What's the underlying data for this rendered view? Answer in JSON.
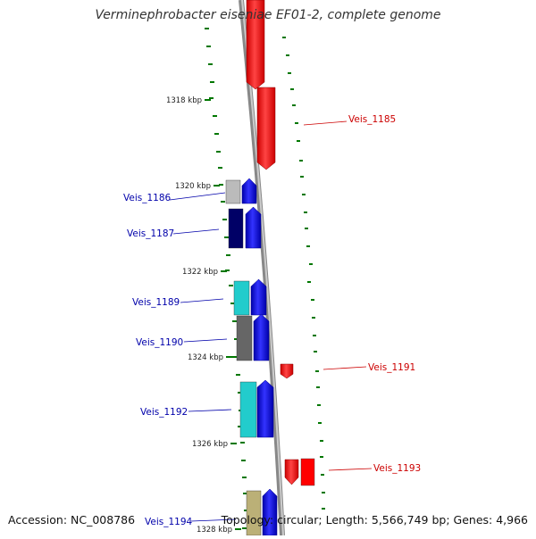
{
  "header": {
    "title": "Verminephrobacter eiseniae EF01-2, complete genome"
  },
  "footer": {
    "accession": "Accession: NC_008786",
    "summary": "Topology: circular; Length: 5,566,749 bp; Genes: 4,966"
  },
  "scale": {
    "ticks": [
      {
        "label": "1318 kbp"
      },
      {
        "label": "1320 kbp"
      },
      {
        "label": "1322 kbp"
      },
      {
        "label": "1324 kbp"
      },
      {
        "label": "1326 kbp"
      },
      {
        "label": "1328 kbp"
      }
    ]
  },
  "genes": [
    {
      "label": "Veis_1185",
      "strand": "reverse",
      "color": "#ff0000"
    },
    {
      "label": "Veis_1186",
      "strand": "forward",
      "color": "#bbbbbb"
    },
    {
      "label": "Veis_1187",
      "strand": "forward",
      "color": "#000066"
    },
    {
      "label": "Veis_1189",
      "strand": "forward",
      "color": "#22cccc"
    },
    {
      "label": "Veis_1190",
      "strand": "forward",
      "color": "#666666"
    },
    {
      "label": "Veis_1191",
      "strand": "reverse",
      "color": "#ff0000"
    },
    {
      "label": "Veis_1192",
      "strand": "forward",
      "color": "#22cccc"
    },
    {
      "label": "Veis_1193",
      "strand": "reverse",
      "color": "#ff0000"
    },
    {
      "label": "Veis_1194",
      "strand": "forward",
      "color": "#bbb077"
    }
  ],
  "colors": {
    "forward_label": "#0000aa",
    "reverse_label": "#cc0000",
    "forward_arrow": "#0000ff",
    "reverse_arrow": "#ff0000",
    "backbone": "#888888",
    "gc_ticks": "#007700"
  }
}
